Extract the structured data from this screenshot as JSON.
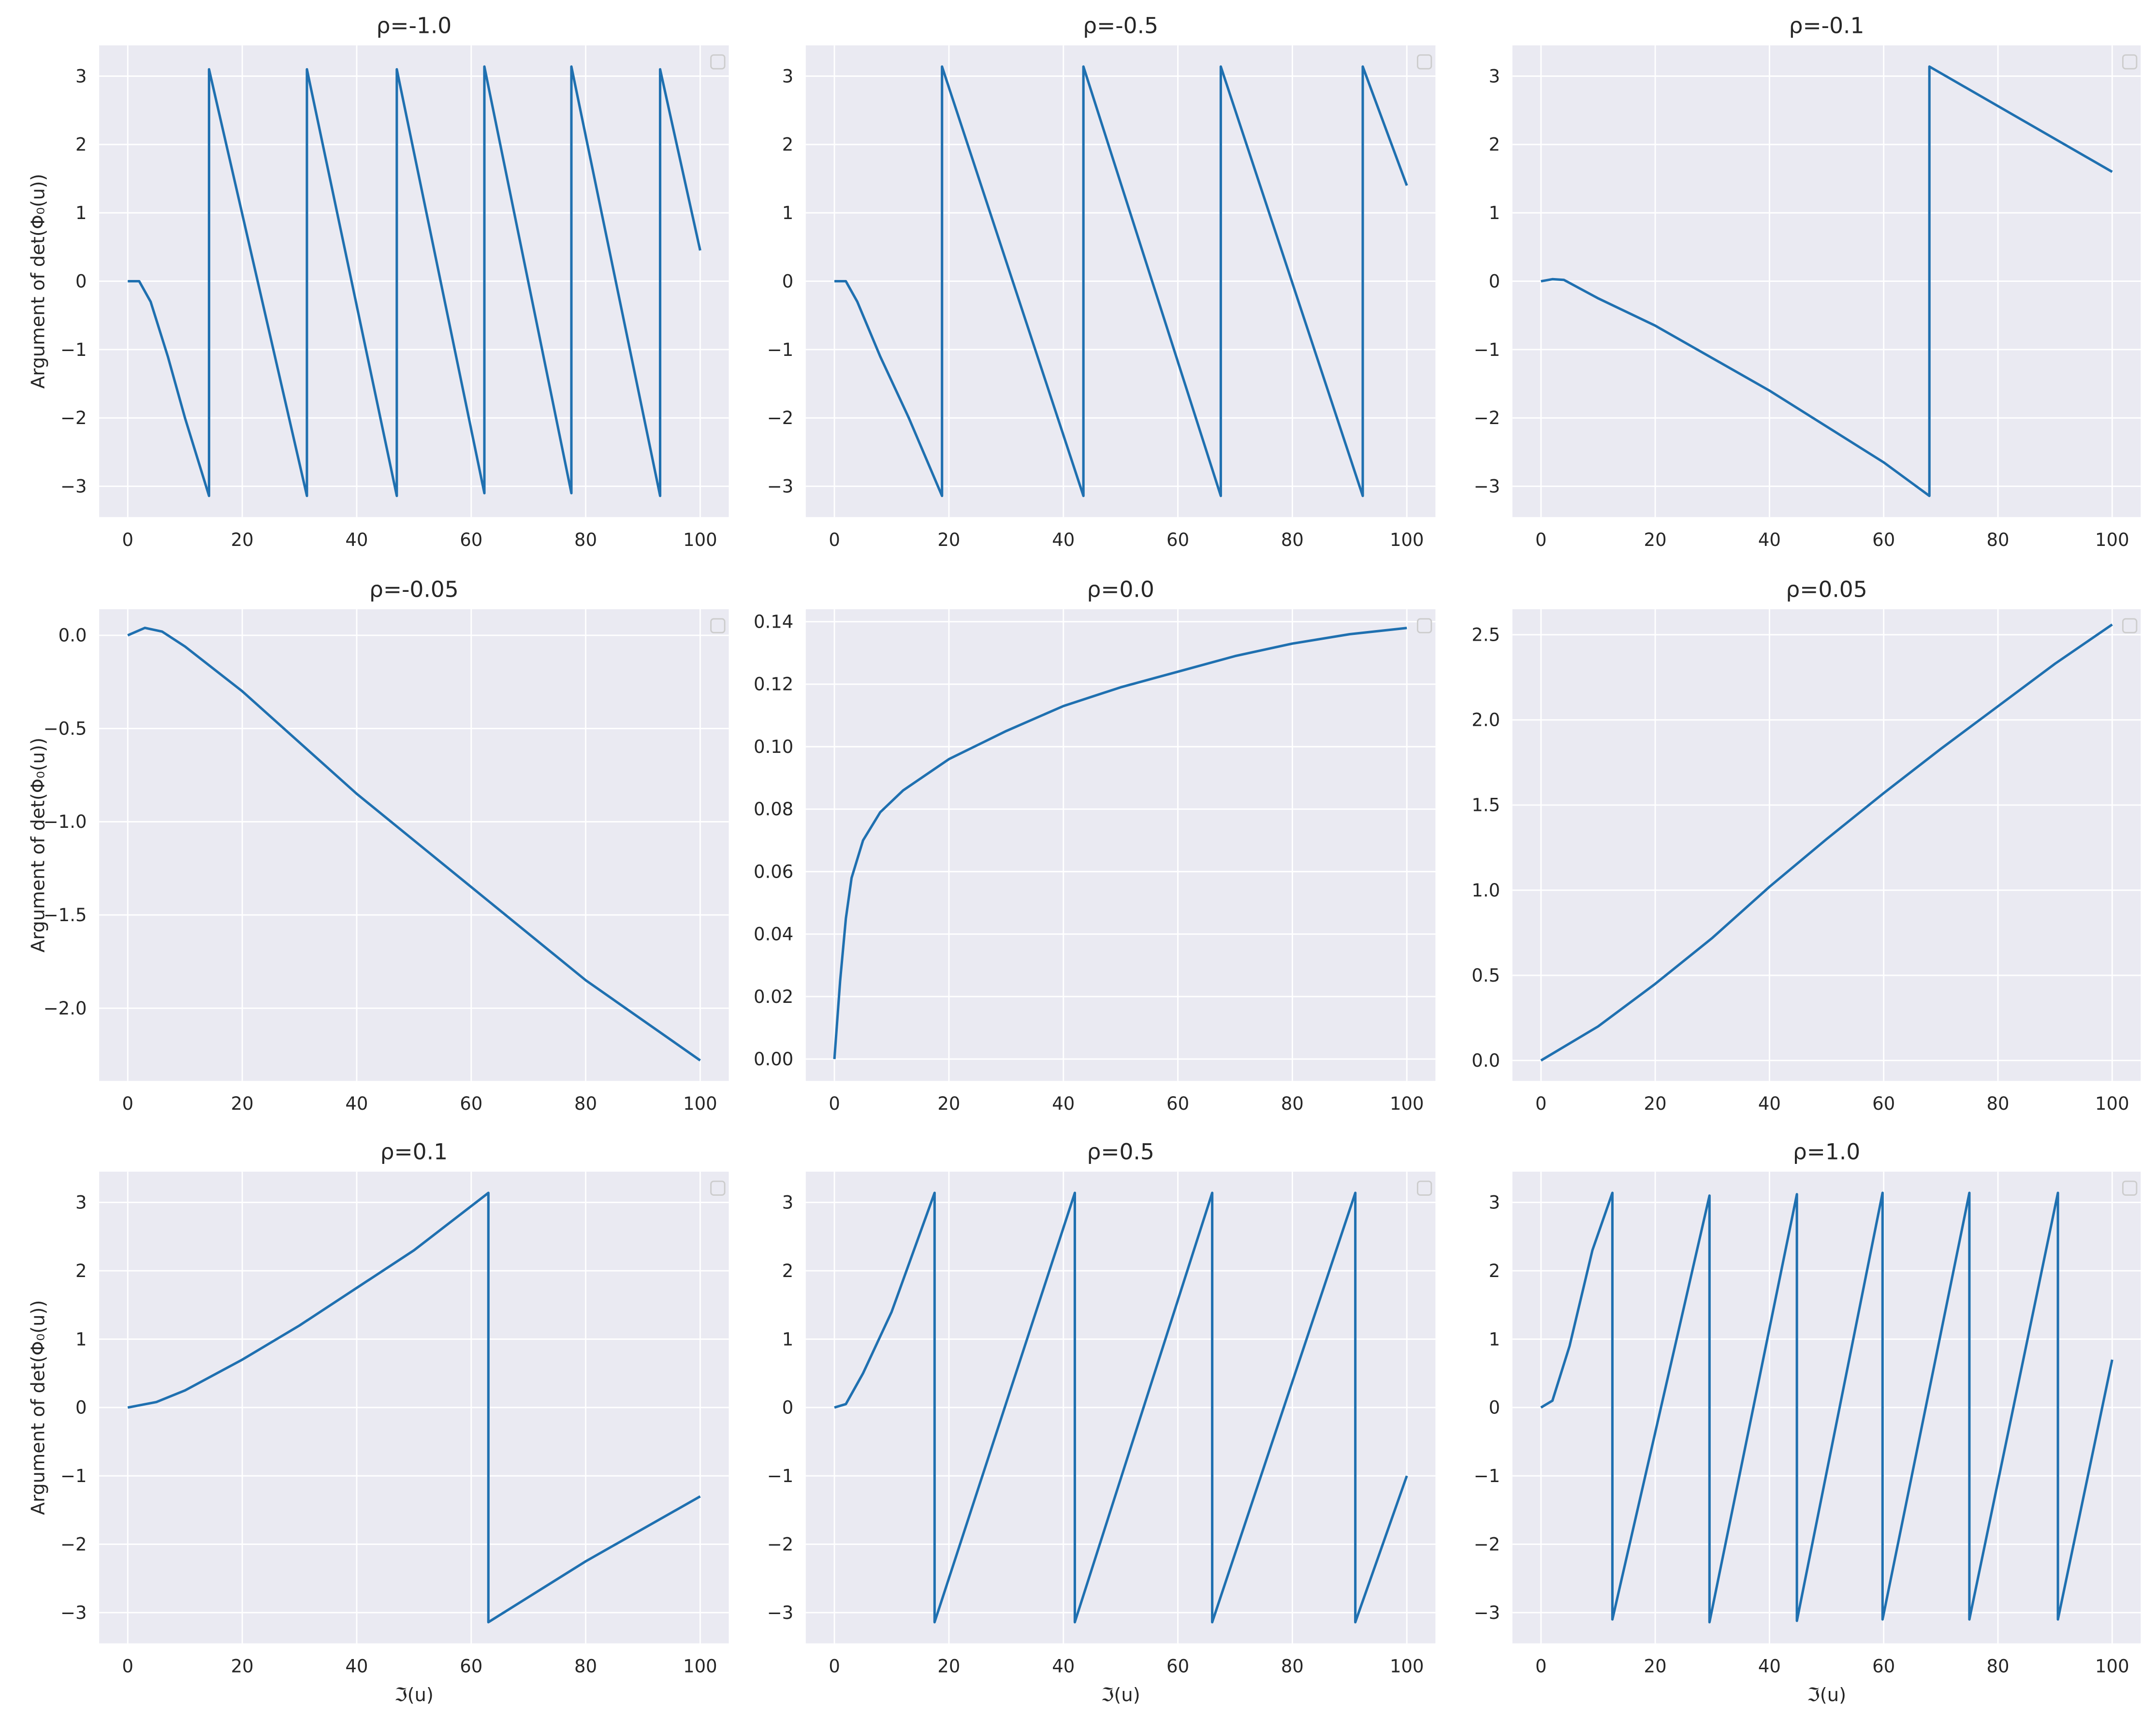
{
  "chart_data": [
    {
      "type": "line",
      "title": "ρ=-1.0",
      "ylabel": "Argument of det(Φ₀(u))",
      "color": "#1f70b0",
      "grid": true,
      "x": [
        0,
        2,
        4,
        7,
        10,
        14.2,
        14.2,
        31.3,
        31.3,
        47,
        47,
        62.3,
        62.3,
        77.5,
        77.5,
        93,
        93,
        100
      ],
      "values": [
        0,
        0,
        -0.3,
        -1.1,
        -2,
        -3.14,
        3.1,
        -3.14,
        3.1,
        -3.14,
        3.1,
        -3.1,
        3.14,
        -3.1,
        3.14,
        -3.14,
        3.1,
        0.45
      ],
      "xlim": [
        -5,
        105
      ],
      "xticks": [
        0,
        20,
        40,
        60,
        80,
        100
      ],
      "ylim": [
        -3.45,
        3.45
      ],
      "yticks": [
        {
          "value": -3,
          "label": "−3"
        },
        {
          "value": -2,
          "label": "−2"
        },
        {
          "value": -1,
          "label": "−1"
        },
        0,
        1,
        2,
        3
      ]
    },
    {
      "type": "line",
      "title": "ρ=-0.5",
      "color": "#1f70b0",
      "grid": true,
      "x": [
        0,
        2,
        4,
        8,
        13,
        18.8,
        18.8,
        43.5,
        43.5,
        67.5,
        67.5,
        92.3,
        92.3,
        100
      ],
      "values": [
        0,
        0,
        -0.3,
        -1.1,
        -2,
        -3.14,
        3.14,
        -3.14,
        3.14,
        -3.14,
        3.14,
        -3.14,
        3.14,
        1.4
      ],
      "xlim": [
        -5,
        105
      ],
      "xticks": [
        0,
        20,
        40,
        60,
        80,
        100
      ],
      "ylim": [
        -3.45,
        3.45
      ],
      "yticks": [
        {
          "value": -3,
          "label": "−3"
        },
        {
          "value": -2,
          "label": "−2"
        },
        {
          "value": -1,
          "label": "−1"
        },
        0,
        1,
        2,
        3
      ]
    },
    {
      "type": "line",
      "title": "ρ=-0.1",
      "color": "#1f70b0",
      "grid": true,
      "x": [
        0,
        2,
        4,
        10,
        20,
        40,
        60,
        68,
        68,
        100
      ],
      "values": [
        0,
        0.03,
        0.02,
        -0.25,
        -0.65,
        -1.6,
        -2.65,
        -3.14,
        3.14,
        1.6
      ],
      "xlim": [
        -5,
        105
      ],
      "xticks": [
        0,
        20,
        40,
        60,
        80,
        100
      ],
      "ylim": [
        -3.45,
        3.45
      ],
      "yticks": [
        {
          "value": -3,
          "label": "−3"
        },
        {
          "value": -2,
          "label": "−2"
        },
        {
          "value": -1,
          "label": "−1"
        },
        0,
        1,
        2,
        3
      ]
    },
    {
      "type": "line",
      "title": "ρ=-0.05",
      "ylabel": "Argument of det(Φ₀(u))",
      "color": "#1f70b0",
      "grid": true,
      "x": [
        0,
        3,
        6,
        10,
        20,
        40,
        60,
        80,
        100
      ],
      "values": [
        0,
        0.04,
        0.02,
        -0.06,
        -0.3,
        -0.85,
        -1.35,
        -1.85,
        -2.28
      ],
      "xlim": [
        -5,
        105
      ],
      "xticks": [
        0,
        20,
        40,
        60,
        80,
        100
      ],
      "ylim": [
        -2.39,
        0.14
      ],
      "yticks": [
        {
          "value": -2,
          "label": "−2.0"
        },
        {
          "value": -1.5,
          "label": "−1.5"
        },
        {
          "value": -1,
          "label": "−1.0"
        },
        {
          "value": -0.5,
          "label": "−0.5"
        },
        {
          "value": 0,
          "label": "0.0"
        }
      ]
    },
    {
      "type": "line",
      "title": "ρ=0.0",
      "color": "#1f70b0",
      "grid": true,
      "x": [
        0,
        1,
        2,
        3,
        5,
        8,
        12,
        20,
        30,
        40,
        50,
        60,
        70,
        80,
        90,
        100
      ],
      "values": [
        0,
        0.025,
        0.045,
        0.058,
        0.07,
        0.079,
        0.086,
        0.096,
        0.105,
        0.113,
        0.119,
        0.124,
        0.129,
        0.133,
        0.136,
        0.138
      ],
      "xlim": [
        -5,
        105
      ],
      "xticks": [
        0,
        20,
        40,
        60,
        80,
        100
      ],
      "ylim": [
        -0.007,
        0.144
      ],
      "yticks": [
        {
          "value": 0,
          "label": "0.00"
        },
        {
          "value": 0.02,
          "label": "0.02"
        },
        {
          "value": 0.04,
          "label": "0.04"
        },
        {
          "value": 0.06,
          "label": "0.06"
        },
        {
          "value": 0.08,
          "label": "0.08"
        },
        {
          "value": 0.1,
          "label": "0.10"
        },
        {
          "value": 0.12,
          "label": "0.12"
        },
        {
          "value": 0.14,
          "label": "0.14"
        }
      ]
    },
    {
      "type": "line",
      "title": "ρ=0.05",
      "color": "#1f70b0",
      "grid": true,
      "x": [
        0,
        10,
        20,
        30,
        40,
        50,
        60,
        70,
        80,
        90,
        100
      ],
      "values": [
        0,
        0.2,
        0.45,
        0.72,
        1.02,
        1.3,
        1.57,
        1.83,
        2.08,
        2.33,
        2.56
      ],
      "xlim": [
        -5,
        105
      ],
      "xticks": [
        0,
        20,
        40,
        60,
        80,
        100
      ],
      "ylim": [
        -0.12,
        2.65
      ],
      "yticks": [
        {
          "value": 0,
          "label": "0.0"
        },
        0.5,
        {
          "value": 1,
          "label": "1.0"
        },
        1.5,
        {
          "value": 2,
          "label": "2.0"
        },
        2.5
      ]
    },
    {
      "type": "line",
      "title": "ρ=0.1",
      "ylabel": "Argument of det(Φ₀(u))",
      "xlabel": "ℑ(u)",
      "color": "#1f70b0",
      "grid": true,
      "x": [
        0,
        5,
        10,
        20,
        30,
        40,
        50,
        63,
        63,
        80,
        100
      ],
      "values": [
        0,
        0.08,
        0.25,
        0.7,
        1.2,
        1.75,
        2.3,
        3.14,
        -3.14,
        -2.25,
        -1.3
      ],
      "xlim": [
        -5,
        105
      ],
      "xticks": [
        0,
        20,
        40,
        60,
        80,
        100
      ],
      "ylim": [
        -3.45,
        3.45
      ],
      "yticks": [
        {
          "value": -3,
          "label": "−3"
        },
        {
          "value": -2,
          "label": "−2"
        },
        {
          "value": -1,
          "label": "−1"
        },
        0,
        1,
        2,
        3
      ]
    },
    {
      "type": "line",
      "title": "ρ=0.5",
      "xlabel": "ℑ(u)",
      "color": "#1f70b0",
      "grid": true,
      "x": [
        0,
        2,
        5,
        10,
        17.5,
        17.5,
        42,
        42,
        66,
        66,
        91,
        91,
        100
      ],
      "values": [
        0,
        0.05,
        0.5,
        1.4,
        3.14,
        -3.14,
        3.14,
        -3.14,
        3.14,
        -3.14,
        3.14,
        -3.14,
        -1
      ],
      "xlim": [
        -5,
        105
      ],
      "xticks": [
        0,
        20,
        40,
        60,
        80,
        100
      ],
      "ylim": [
        -3.45,
        3.45
      ],
      "yticks": [
        {
          "value": -3,
          "label": "−3"
        },
        {
          "value": -2,
          "label": "−2"
        },
        {
          "value": -1,
          "label": "−1"
        },
        0,
        1,
        2,
        3
      ]
    },
    {
      "type": "line",
      "title": "ρ=1.0",
      "xlabel": "ℑ(u)",
      "color": "#1f70b0",
      "grid": true,
      "x": [
        0,
        2,
        5,
        9,
        12.5,
        12.5,
        29.5,
        29.5,
        44.8,
        44.8,
        59.8,
        59.8,
        75,
        75,
        90.5,
        90.5,
        100
      ],
      "values": [
        0,
        0.1,
        0.9,
        2.3,
        3.14,
        -3.1,
        3.1,
        -3.14,
        3.12,
        -3.12,
        3.14,
        -3.1,
        3.14,
        -3.1,
        3.14,
        -3.1,
        0.7
      ],
      "xlim": [
        -5,
        105
      ],
      "xticks": [
        0,
        20,
        40,
        60,
        80,
        100
      ],
      "ylim": [
        -3.45,
        3.45
      ],
      "yticks": [
        {
          "value": -3,
          "label": "−3"
        },
        {
          "value": -2,
          "label": "−2"
        },
        {
          "value": -1,
          "label": "−1"
        },
        0,
        1,
        2,
        3
      ]
    }
  ]
}
